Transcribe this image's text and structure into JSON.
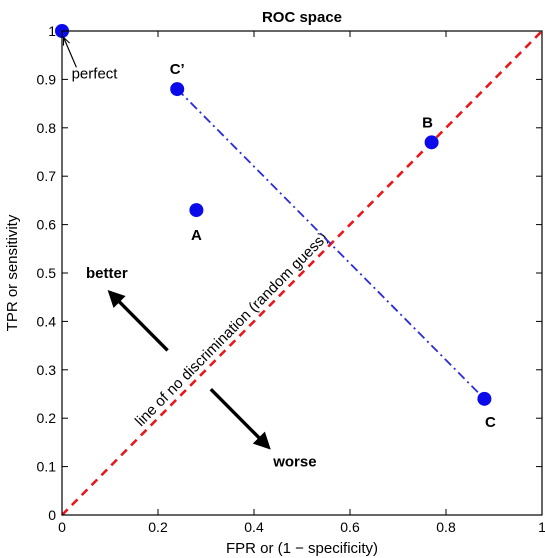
{
  "chart_data": {
    "type": "scatter",
    "title": "ROC space",
    "xlabel": "FPR or (1 − specificity)",
    "ylabel": "TPR or sensitivity",
    "xlim": [
      0,
      1
    ],
    "ylim": [
      0,
      1
    ],
    "grid": false,
    "x_ticks": [
      "0",
      "0.2",
      "0.4",
      "0.6",
      "0.8",
      "1"
    ],
    "y_ticks": [
      "0",
      "0.1",
      "0.2",
      "0.3",
      "0.4",
      "0.5",
      "0.6",
      "0.7",
      "0.8",
      "0.9",
      "1"
    ],
    "points": [
      {
        "label": "",
        "x": 0.0,
        "y": 1.0
      },
      {
        "label": "A",
        "x": 0.28,
        "y": 0.63
      },
      {
        "label": "B",
        "x": 0.77,
        "y": 0.77
      },
      {
        "label": "C",
        "x": 0.88,
        "y": 0.24
      },
      {
        "label": "C’",
        "x": 0.24,
        "y": 0.88
      }
    ],
    "lines": [
      {
        "style": "dashed",
        "color": "#e8171b",
        "x": [
          0,
          1
        ],
        "y": [
          0,
          1
        ],
        "label": "line of no discrimination (random guess)"
      },
      {
        "style": "dashdot",
        "color": "#2b2bd8",
        "x": [
          0.24,
          0.88
        ],
        "y": [
          0.88,
          0.24
        ]
      }
    ],
    "annotations": [
      {
        "text": "perfect",
        "bold": false
      },
      {
        "text": "better",
        "bold": true
      },
      {
        "text": "worse",
        "bold": true
      }
    ],
    "colors": {
      "points": "#0a0aeb",
      "diagonal": "#e8171b",
      "connector": "#2b2bd8"
    }
  }
}
